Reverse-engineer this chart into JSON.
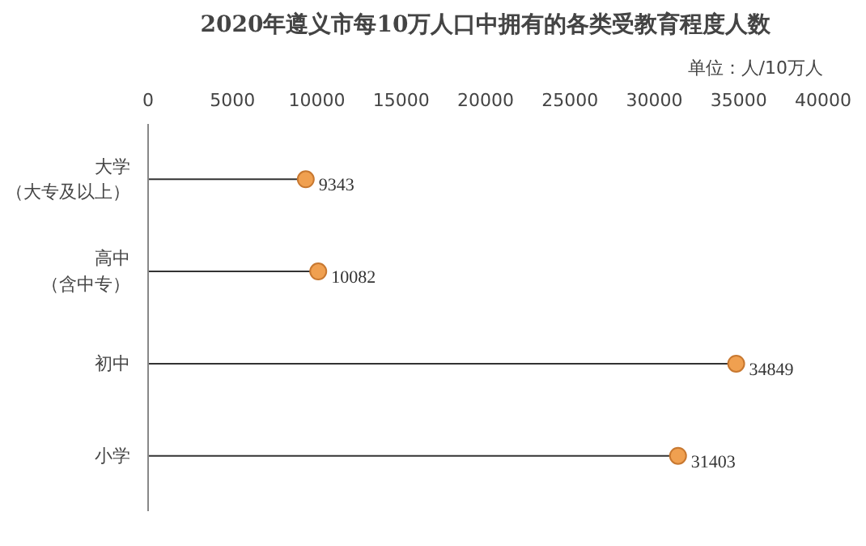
{
  "chart_data": {
    "type": "lollipop",
    "orientation": "horizontal",
    "title": "2020年遵义市每10万人口中拥有的各类受教育程度人数",
    "subtitle": "单位：人/10万人",
    "categories": [
      "大学（大专及以上）",
      "高中（含中专）",
      "初中",
      "小学"
    ],
    "values": [
      9343,
      10082,
      34849,
      31403
    ],
    "color": "#f0a050",
    "xlim": [
      0,
      40000
    ],
    "xticks": [
      0,
      5000,
      10000,
      15000,
      20000,
      25000,
      30000,
      35000,
      40000
    ],
    "data_labels": true,
    "grid": false,
    "marker": "circle"
  }
}
